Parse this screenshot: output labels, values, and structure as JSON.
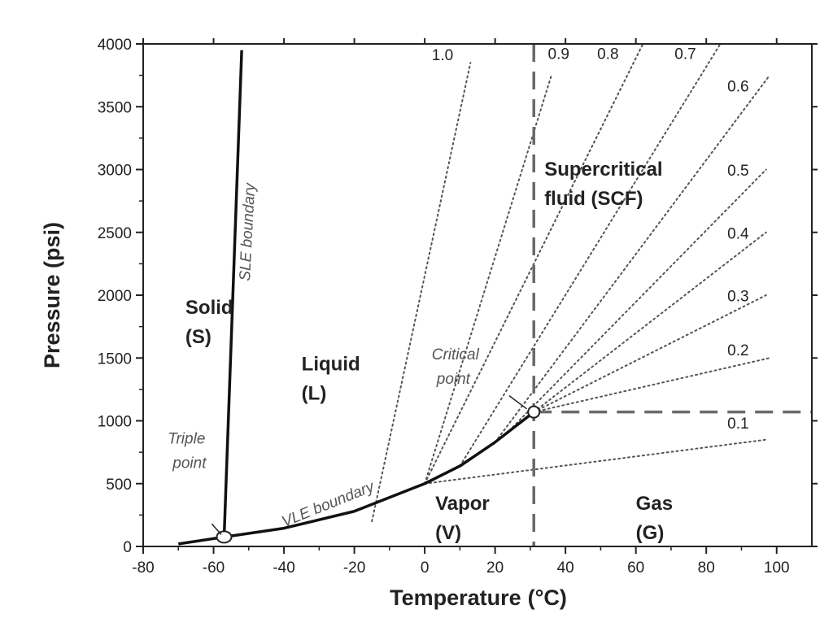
{
  "chart_data": {
    "type": "line",
    "title": "",
    "xlabel": "Temperature",
    "xlabel_unit": "(°C)",
    "ylabel": "Pressure (psi)",
    "xlim": [
      -80,
      110
    ],
    "ylim": [
      0,
      4000
    ],
    "xticks": [
      -80,
      -60,
      -40,
      -20,
      0,
      20,
      40,
      60,
      80,
      100
    ],
    "yticks": [
      0,
      500,
      1000,
      1500,
      2000,
      2500,
      3000,
      3500,
      4000
    ],
    "grid": false,
    "legend": "none",
    "colors": {
      "curve": "#111111",
      "dotted": "#555555",
      "dashed": "#6a6a6a",
      "text": "#222222",
      "note": "#555555"
    },
    "boundaries": [
      {
        "label": "SLE boundary",
        "points": [
          [
            -57,
            75
          ],
          [
            -52,
            3950
          ]
        ]
      },
      {
        "label": "VLE boundary",
        "points": [
          [
            -70,
            20
          ],
          [
            -57,
            75
          ],
          [
            -40,
            145
          ],
          [
            -20,
            280
          ],
          [
            0,
            500
          ],
          [
            10,
            640
          ],
          [
            20,
            830
          ],
          [
            31,
            1070
          ]
        ]
      }
    ],
    "critical_lines": {
      "temperature": 31,
      "pressure": 1070
    },
    "points": [
      {
        "label": "Triple point",
        "x": -57,
        "y": 75
      },
      {
        "label": "Critical point",
        "x": 31,
        "y": 1070
      }
    ],
    "regions": [
      {
        "line1": "Solid",
        "line2": "(S)",
        "x": -68,
        "y": 1850
      },
      {
        "line1": "Liquid",
        "line2": "(L)",
        "x": -35,
        "y": 1400
      },
      {
        "line1": "Vapor",
        "line2": "(V)",
        "x": 3,
        "y": 290
      },
      {
        "line1": "Gas",
        "line2": "(G)",
        "x": 60,
        "y": 290
      },
      {
        "line1": "Supercritical",
        "line2": "fluid (SCF)",
        "x": 34,
        "y": 2950
      }
    ],
    "isochores": [
      {
        "label": "1.0",
        "start": [
          -15,
          200
        ],
        "end": [
          13,
          3850
        ],
        "label_at": [
          2,
          3870
        ]
      },
      {
        "label": "0.9",
        "start": [
          0,
          500
        ],
        "end": [
          36,
          3750
        ],
        "label_at": [
          35,
          3880
        ]
      },
      {
        "label": "0.8",
        "start": [
          0,
          500
        ],
        "end": [
          62,
          4000
        ],
        "label_at": [
          49,
          3880
        ]
      },
      {
        "label": "0.7",
        "start": [
          10,
          640
        ],
        "end": [
          84,
          4000
        ],
        "label_at": [
          71,
          3880
        ]
      },
      {
        "label": "0.6",
        "start": [
          20,
          830
        ],
        "end": [
          98,
          3750
        ],
        "label_at": [
          86,
          3620
        ]
      },
      {
        "label": "0.5",
        "start": [
          25,
          950
        ],
        "end": [
          97,
          3000
        ],
        "label_at": [
          86,
          2950
        ]
      },
      {
        "label": "0.4",
        "start": [
          31,
          1070
        ],
        "end": [
          97,
          2500
        ],
        "label_at": [
          86,
          2450
        ]
      },
      {
        "label": "0.3",
        "start": [
          31,
          1070
        ],
        "end": [
          97,
          2000
        ],
        "label_at": [
          86,
          1950
        ]
      },
      {
        "label": "0.2",
        "start": [
          31,
          1070
        ],
        "end": [
          98,
          1500
        ],
        "label_at": [
          86,
          1520
        ]
      },
      {
        "label": "0.1",
        "start": [
          0,
          500
        ],
        "end": [
          97,
          850
        ],
        "label_at": [
          86,
          940
        ]
      }
    ],
    "annotations": [
      {
        "line1": "Triple",
        "line2": "point",
        "x": -73,
        "y": 820
      },
      {
        "line1": "Critical",
        "line2": "point",
        "x": 2,
        "y": 1490
      }
    ]
  }
}
